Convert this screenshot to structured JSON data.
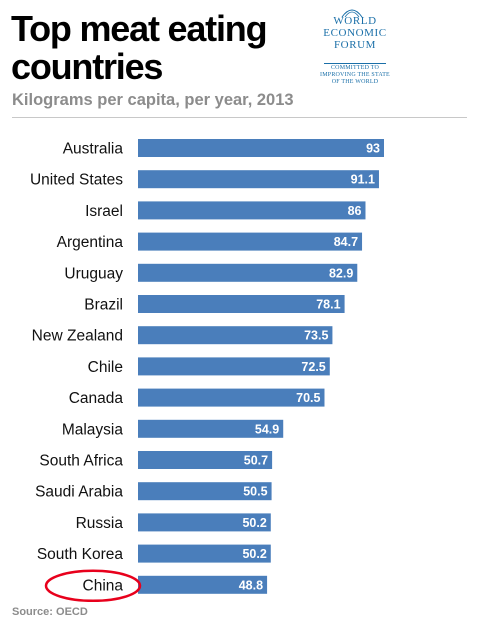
{
  "header": {
    "title": "Top meat eating countries",
    "subtitle": "Kilograms per capita, per year, 2013"
  },
  "logo": {
    "org_name": "WORLD ECONOMIC FORUM",
    "tagline": "COMMITTED TO IMPROVING THE STATE OF THE WORLD"
  },
  "footer": {
    "source": "Source: OECD"
  },
  "chart_data": {
    "type": "bar",
    "orientation": "horizontal",
    "title": "Top meat eating countries",
    "subtitle": "Kilograms per capita, per year, 2013",
    "categories": [
      "Australia",
      "United States",
      "Israel",
      "Argentina",
      "Uruguay",
      "Brazil",
      "New Zealand",
      "Chile",
      "Canada",
      "Malaysia",
      "South Africa",
      "Saudi Arabia",
      "Russia",
      "South Korea",
      "China"
    ],
    "values": [
      93,
      91.1,
      86,
      84.7,
      82.9,
      78.1,
      73.5,
      72.5,
      70.5,
      54.9,
      50.7,
      50.5,
      50.2,
      50.2,
      48.8
    ],
    "value_labels": [
      "93",
      "91.1",
      "86",
      "84.7",
      "82.9",
      "78.1",
      "73.5",
      "72.5",
      "70.5",
      "54.9",
      "50.7",
      "50.5",
      "50.2",
      "50.2",
      "48.8"
    ],
    "xlim": [
      0,
      93
    ],
    "highlighted_category": "China",
    "bar_color": "#4a7ebb",
    "highlight_color": "#e8001c",
    "label_color": "#ffffff",
    "grid": false,
    "legend": "none"
  }
}
